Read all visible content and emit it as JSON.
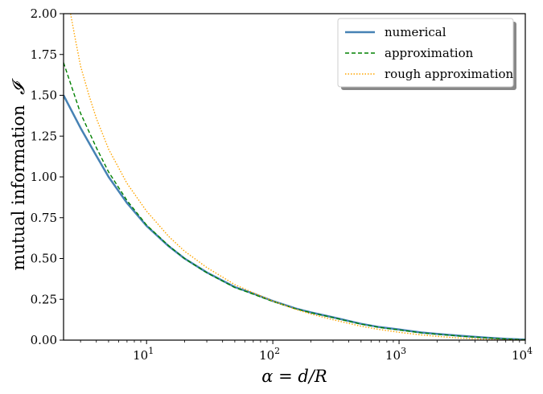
{
  "chart_data": {
    "type": "line",
    "xscale": "log",
    "xlim": [
      2.2,
      10000
    ],
    "ylim": [
      0,
      2.0
    ],
    "xlabel": "α = d/R",
    "ylabel_text": "mutual information",
    "ylabel_symbol": "𝓘",
    "x_ticks": [
      {
        "value": 10,
        "base": "10",
        "exp": "1"
      },
      {
        "value": 100,
        "base": "10",
        "exp": "2"
      },
      {
        "value": 1000,
        "base": "10",
        "exp": "3"
      },
      {
        "value": 10000,
        "base": "10",
        "exp": "4"
      }
    ],
    "y_ticks": [
      "0.00",
      "0.25",
      "0.50",
      "0.75",
      "1.00",
      "1.25",
      "1.50",
      "1.75",
      "2.00"
    ],
    "legend_position": "top-right",
    "grid": false,
    "series": [
      {
        "name": "numerical",
        "color": "#4682b4",
        "style": "solid",
        "x": [
          2.2,
          3,
          4,
          5,
          7,
          10,
          15,
          20,
          30,
          50,
          70,
          100,
          150,
          200,
          300,
          500,
          700,
          1000,
          1500,
          2000,
          3000,
          5000,
          7000,
          10000
        ],
        "y": [
          1.5,
          1.3,
          1.13,
          1.0,
          0.84,
          0.7,
          0.575,
          0.5,
          0.415,
          0.325,
          0.285,
          0.24,
          0.195,
          0.17,
          0.14,
          0.1,
          0.08,
          0.065,
          0.047,
          0.038,
          0.027,
          0.015,
          0.008,
          0.003
        ]
      },
      {
        "name": "approximation",
        "color": "#008000",
        "style": "dashed",
        "x": [
          2.2,
          3,
          4,
          5,
          7,
          10,
          15,
          20,
          30,
          50,
          70,
          100,
          150,
          200,
          300,
          500,
          700,
          1000,
          1500,
          2000,
          3000,
          5000,
          7000,
          10000
        ],
        "y": [
          1.7,
          1.39,
          1.18,
          1.03,
          0.855,
          0.705,
          0.578,
          0.5,
          0.413,
          0.322,
          0.282,
          0.237,
          0.193,
          0.168,
          0.138,
          0.098,
          0.078,
          0.062,
          0.045,
          0.036,
          0.025,
          0.014,
          0.007,
          0.002
        ]
      },
      {
        "name": "rough approximation",
        "color": "#ffa500",
        "style": "dotted",
        "x": [
          2.5,
          2.7,
          3,
          3.5,
          4,
          5,
          7,
          10,
          15,
          20,
          30,
          50,
          70,
          100,
          150,
          200,
          300,
          500,
          700,
          1000,
          1500,
          2000,
          3000,
          5000,
          7000,
          10000
        ],
        "y": [
          2.0,
          1.86,
          1.68,
          1.5,
          1.36,
          1.17,
          0.96,
          0.79,
          0.635,
          0.545,
          0.445,
          0.34,
          0.29,
          0.24,
          0.19,
          0.16,
          0.125,
          0.085,
          0.065,
          0.048,
          0.032,
          0.023,
          0.013,
          0.005,
          0.002,
          0.0
        ]
      }
    ]
  }
}
